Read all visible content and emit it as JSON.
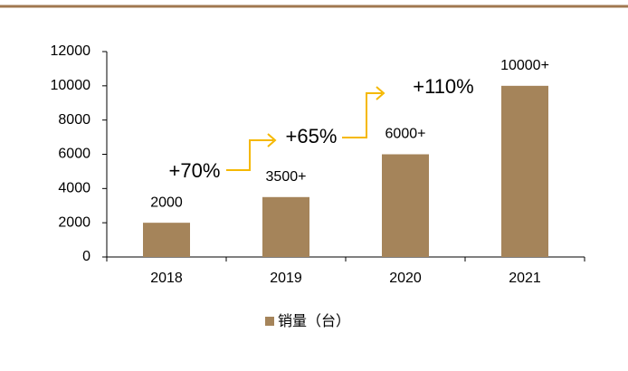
{
  "chart_data": {
    "type": "bar",
    "categories": [
      "2018",
      "2019",
      "2020",
      "2021"
    ],
    "series": [
      {
        "name": "销量（台）",
        "color": "#a5845a",
        "values": [
          2000,
          3500,
          6000,
          10000
        ],
        "value_labels": [
          "2000",
          "3500+",
          "6000+",
          "10000+"
        ]
      }
    ],
    "ylim": [
      0,
      12000
    ],
    "yticks": [
      0,
      2000,
      4000,
      6000,
      8000,
      10000,
      12000
    ],
    "annotations": [
      "+70%",
      "+65%",
      "+110%"
    ],
    "legend": "bottom"
  }
}
